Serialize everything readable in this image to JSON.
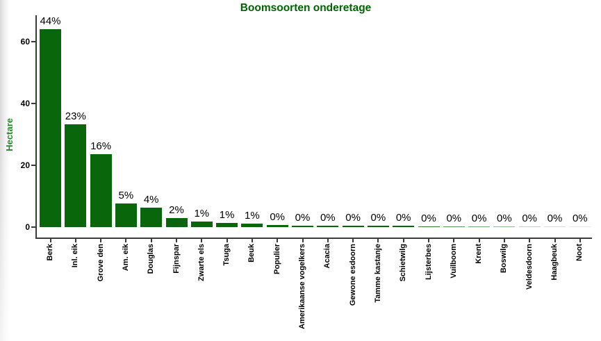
{
  "colors": {
    "bar": "#0a660a",
    "title": "#006400",
    "ylabel_text": "#1e8c1e",
    "axis": "#3a3a3a",
    "value_label": "#000000",
    "page_edge": "#d9d9d9"
  },
  "chart_data": {
    "type": "bar",
    "title": "Boomsoorten onderetage",
    "xlabel": "",
    "ylabel": "Hectare",
    "ylim": [
      0,
      68
    ],
    "yticks": [
      0,
      20,
      40,
      60
    ],
    "grid": false,
    "legend": null,
    "categories": [
      "Berk",
      "Inl. eik",
      "Grove den",
      "Am. eik",
      "Douglas",
      "Fijnspar",
      "Zwarte els",
      "Tsuga",
      "Beuk",
      "Populier",
      "Amerikaanse vogelkers",
      "Acacia",
      "Gewone esdoorn",
      "Tamme kastanje",
      "Schietwilg",
      "Lijsterbes",
      "Vuilboom",
      "Krent",
      "Boswilg",
      "Veldesdoorn",
      "Haagbeuk",
      "Noot"
    ],
    "values_hectare": [
      64,
      33.2,
      23.6,
      7.6,
      6.3,
      2.9,
      1.9,
      1.4,
      1.2,
      0.6,
      0.55,
      0.49,
      0.44,
      0.4,
      0.36,
      0.3,
      0.24,
      0.2,
      0.16,
      0.1,
      0.07,
      0.04
    ],
    "bar_labels": [
      "44%",
      "23%",
      "16%",
      "5%",
      "4%",
      "2%",
      "1%",
      "1%",
      "1%",
      "0%",
      "0%",
      "0%",
      "0%",
      "0%",
      "0%",
      "0%",
      "0%",
      "0%",
      "0%",
      "0%",
      "0%",
      "0%"
    ]
  }
}
